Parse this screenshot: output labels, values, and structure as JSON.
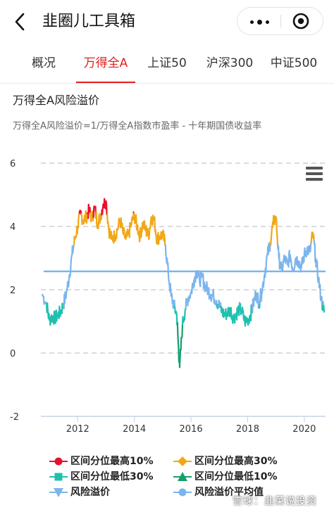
{
  "header": {
    "title": "韭圈儿工具箱",
    "back_icon": "back-chevron-icon",
    "more_icon": "more-dots-icon",
    "close_icon": "target-close-icon"
  },
  "tabs": [
    {
      "label": "概况",
      "active": false
    },
    {
      "label": "万得全A",
      "active": true
    },
    {
      "label": "上证50",
      "active": false
    },
    {
      "label": "沪深300",
      "active": false
    },
    {
      "label": "中证500",
      "active": false
    }
  ],
  "section": {
    "title": "万得全A风险溢价",
    "subtitle": "万得全A风险溢价=1/万得全A指数市盈率 - 十年期国债收益率"
  },
  "chart_data": {
    "type": "line",
    "title": "",
    "xlabel": "",
    "ylabel": "",
    "xlim": [
      2010.7,
      2020.75
    ],
    "ylim": [
      -2,
      6
    ],
    "y_ticks": [
      "6",
      "4",
      "2",
      "0",
      "-2"
    ],
    "x_ticks": [
      "2012",
      "2014",
      "2016",
      "2018",
      "2020"
    ],
    "grid": "horizontal dashed",
    "legend_position": "bottom",
    "average_value": 2.58,
    "series": [
      {
        "name": "风险溢价",
        "color": "#7cb5ec",
        "x": [
          2010.75,
          2010.9,
          2011.0,
          2011.1,
          2011.2,
          2011.3,
          2011.4,
          2011.5,
          2011.6,
          2011.7,
          2011.8,
          2011.9,
          2012.0,
          2012.1,
          2012.2,
          2012.3,
          2012.4,
          2012.5,
          2012.6,
          2012.7,
          2012.8,
          2012.9,
          2013.0,
          2013.1,
          2013.2,
          2013.3,
          2013.4,
          2013.5,
          2013.6,
          2013.7,
          2013.8,
          2013.9,
          2014.0,
          2014.1,
          2014.2,
          2014.3,
          2014.4,
          2014.5,
          2014.6,
          2014.7,
          2014.8,
          2014.9,
          2015.0,
          2015.1,
          2015.2,
          2015.3,
          2015.4,
          2015.5,
          2015.55,
          2015.6,
          2015.7,
          2015.8,
          2015.9,
          2016.0,
          2016.1,
          2016.2,
          2016.3,
          2016.4,
          2016.5,
          2016.6,
          2016.7,
          2016.8,
          2016.9,
          2017.0,
          2017.1,
          2017.2,
          2017.3,
          2017.4,
          2017.5,
          2017.6,
          2017.7,
          2017.8,
          2017.9,
          2018.0,
          2018.1,
          2018.2,
          2018.3,
          2018.4,
          2018.5,
          2018.6,
          2018.7,
          2018.8,
          2018.9,
          2019.0,
          2019.1,
          2019.2,
          2019.3,
          2019.4,
          2019.5,
          2019.6,
          2019.7,
          2019.8,
          2019.9,
          2020.0,
          2020.1,
          2020.2,
          2020.3,
          2020.4,
          2020.5,
          2020.6,
          2020.7
        ],
        "y": [
          1.85,
          1.55,
          1.05,
          1.15,
          1.1,
          1.2,
          1.3,
          1.55,
          1.9,
          2.4,
          3.1,
          3.6,
          4.0,
          4.4,
          4.2,
          4.3,
          4.5,
          4.25,
          4.6,
          4.1,
          4.3,
          4.7,
          4.8,
          3.9,
          3.6,
          3.7,
          3.9,
          4.2,
          3.8,
          3.6,
          3.75,
          4.1,
          4.35,
          4.0,
          3.7,
          4.1,
          3.9,
          3.7,
          4.3,
          4.2,
          3.6,
          3.7,
          3.75,
          3.4,
          2.5,
          1.8,
          1.5,
          1.2,
          0.3,
          -0.45,
          0.9,
          1.4,
          1.75,
          1.9,
          2.3,
          2.6,
          2.3,
          2.4,
          2.1,
          2.0,
          1.85,
          1.8,
          1.65,
          1.5,
          1.3,
          1.2,
          1.3,
          1.35,
          1.1,
          1.25,
          1.4,
          1.3,
          1.0,
          1.05,
          1.2,
          1.55,
          1.9,
          1.6,
          1.95,
          2.5,
          3.1,
          3.5,
          4.1,
          4.3,
          3.0,
          2.6,
          3.0,
          2.8,
          3.1,
          2.65,
          3.0,
          2.9,
          2.7,
          3.1,
          3.3,
          3.2,
          3.8,
          3.0,
          2.35,
          1.7,
          1.3
        ]
      }
    ],
    "average_series": {
      "name": "风险溢价平均值",
      "color": "#7cb5ec"
    },
    "highlight_bands": [
      {
        "name": "区间分位最高10%",
        "color": "#e8112d",
        "rule": "y >= 4.4"
      },
      {
        "name": "区间分位最高30%",
        "color": "#f0a818",
        "rule": "3.5 <= y < 4.4"
      },
      {
        "name": "区间分位最低30%",
        "color": "#20c0b0",
        "rule": "0.9 < y <= 1.5"
      },
      {
        "name": "区间分位最低10%",
        "color": "#14a06c",
        "rule": "y <= 0.9"
      }
    ]
  },
  "legend": [
    {
      "label": "区间分位最高10%",
      "color": "#e8112d",
      "marker": "circle"
    },
    {
      "label": "区间分位最高30%",
      "color": "#f0a818",
      "marker": "diamond"
    },
    {
      "label": "区间分位最低30%",
      "color": "#20c0b0",
      "marker": "square"
    },
    {
      "label": "区间分位最低10%",
      "color": "#14a06c",
      "marker": "triangle"
    },
    {
      "label": "风险溢价",
      "color": "#7cb5ec",
      "marker": "triangle-down"
    },
    {
      "label": "风险溢价平均值",
      "color": "#7cb5ec",
      "marker": "circle"
    }
  ],
  "menu_icon": "hamburger-menu-icon",
  "watermark": "雪球：韭菜说投资"
}
